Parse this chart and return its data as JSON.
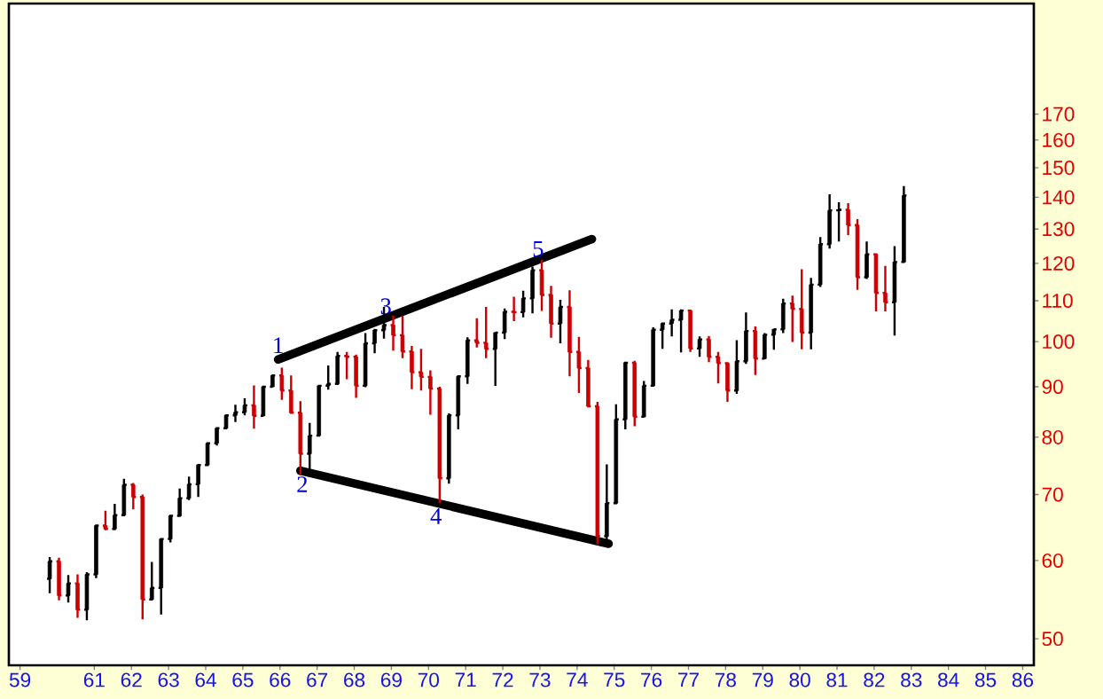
{
  "chart_data": {
    "type": "candlestick",
    "log": "y",
    "xlim": [
      58.7,
      86.3
    ],
    "ylim": [
      47,
      220
    ],
    "xticks": [
      59,
      61,
      62,
      63,
      64,
      65,
      66,
      67,
      68,
      69,
      70,
      71,
      72,
      73,
      74,
      75,
      76,
      77,
      78,
      79,
      80,
      81,
      82,
      83,
      84,
      85,
      86
    ],
    "yticks": [
      50,
      60,
      70,
      80,
      90,
      100,
      110,
      120,
      130,
      140,
      150,
      160,
      170
    ],
    "x": [
      59.8,
      60.05,
      60.3,
      60.55,
      60.8,
      61.05,
      61.3,
      61.55,
      61.8,
      62.05,
      62.3,
      62.55,
      62.8,
      63.05,
      63.3,
      63.55,
      63.8,
      64.05,
      64.3,
      64.55,
      64.8,
      65.05,
      65.3,
      65.55,
      65.8,
      66.05,
      66.3,
      66.55,
      66.8,
      67.05,
      67.3,
      67.55,
      67.8,
      68.05,
      68.3,
      68.55,
      68.8,
      69.05,
      69.3,
      69.55,
      69.8,
      70.05,
      70.3,
      70.55,
      70.8,
      71.05,
      71.3,
      71.55,
      71.8,
      72.05,
      72.3,
      72.55,
      72.8,
      73.05,
      73.3,
      73.55,
      73.8,
      74.05,
      74.3,
      74.55,
      74.8,
      75.05,
      75.3,
      75.55,
      75.8,
      76.05,
      76.3,
      76.55,
      76.8,
      77.05,
      77.3,
      77.55,
      77.8,
      78.05,
      78.3,
      78.55,
      78.8,
      79.05,
      79.3,
      79.55,
      79.8,
      80.05,
      80.3,
      80.55,
      80.8,
      81.05,
      81.3,
      81.55,
      81.8,
      82.05,
      82.3,
      82.55,
      82.8
    ],
    "ohlc": [
      [
        57.5,
        60.5,
        55.6,
        59.9
      ],
      [
        59.9,
        60.4,
        54.7,
        55.3
      ],
      [
        55.3,
        58.0,
        54.4,
        56.9
      ],
      [
        56.9,
        58.1,
        52.5,
        53.5
      ],
      [
        53.5,
        58.4,
        52.2,
        58.1
      ],
      [
        58.1,
        65.1,
        57.6,
        65.1
      ],
      [
        65.1,
        67.4,
        64.4,
        64.6
      ],
      [
        64.6,
        68.5,
        64.4,
        66.7
      ],
      [
        66.7,
        72.6,
        66.7,
        71.6
      ],
      [
        71.6,
        71.9,
        67.6,
        69.6
      ],
      [
        69.6,
        70.0,
        52.3,
        54.8
      ],
      [
        54.8,
        59.8,
        54.8,
        56.3
      ],
      [
        56.3,
        63.1,
        52.9,
        63.1
      ],
      [
        63.1,
        66.6,
        62.6,
        66.6
      ],
      [
        66.6,
        71.0,
        66.6,
        69.4
      ],
      [
        69.4,
        73.0,
        69.1,
        71.7
      ],
      [
        71.7,
        75.0,
        69.6,
        75.0
      ],
      [
        75.0,
        79.1,
        75.0,
        78.9
      ],
      [
        78.9,
        81.7,
        78.5,
        81.7
      ],
      [
        81.7,
        84.2,
        81.5,
        84.2
      ],
      [
        84.2,
        86.3,
        82.9,
        84.8
      ],
      [
        84.8,
        87.6,
        84.2,
        86.2
      ],
      [
        86.2,
        90.3,
        81.6,
        84.1
      ],
      [
        84.1,
        90.0,
        84.0,
        90.0
      ],
      [
        90.0,
        92.6,
        89.9,
        92.4
      ],
      [
        92.4,
        94.1,
        87.3,
        89.2
      ],
      [
        89.2,
        92.4,
        84.7,
        84.7
      ],
      [
        84.7,
        87.0,
        73.2,
        77.0
      ],
      [
        77.0,
        82.7,
        73.2,
        80.3
      ],
      [
        80.3,
        90.2,
        80.3,
        90.2
      ],
      [
        90.2,
        94.6,
        89.4,
        90.6
      ],
      [
        90.6,
        97.6,
        90.6,
        96.7
      ],
      [
        96.7,
        97.6,
        91.6,
        96.5
      ],
      [
        96.5,
        97.0,
        87.7,
        90.2
      ],
      [
        90.2,
        102.0,
        89.9,
        99.6
      ],
      [
        99.6,
        103.0,
        97.3,
        102.7
      ],
      [
        102.7,
        108.4,
        100.7,
        103.9
      ],
      [
        103.9,
        106.2,
        97.9,
        101.5
      ],
      [
        101.5,
        106.2,
        96.2,
        97.7
      ],
      [
        97.7,
        99.0,
        89.5,
        93.1
      ],
      [
        93.1,
        98.3,
        89.2,
        92.1
      ],
      [
        92.1,
        93.5,
        84.3,
        89.6
      ],
      [
        89.6,
        90.0,
        68.6,
        72.7
      ],
      [
        72.7,
        84.6,
        71.8,
        84.2
      ],
      [
        84.2,
        92.2,
        81.5,
        92.2
      ],
      [
        92.2,
        101.0,
        90.6,
        100.3
      ],
      [
        100.3,
        105.6,
        98.6,
        99.7
      ],
      [
        99.7,
        108.4,
        96.2,
        98.3
      ],
      [
        98.3,
        102.2,
        90.2,
        102.1
      ],
      [
        102.1,
        108.0,
        100.6,
        107.2
      ],
      [
        107.2,
        111.0,
        104.9,
        107.1
      ],
      [
        107.1,
        112.6,
        105.8,
        110.6
      ],
      [
        110.6,
        119.1,
        106.8,
        118.1
      ],
      [
        118.1,
        121.0,
        107.4,
        111.5
      ],
      [
        111.5,
        113.9,
        100.9,
        104.3
      ],
      [
        104.3,
        110.2,
        99.6,
        108.4
      ],
      [
        108.4,
        112.7,
        92.2,
        97.6
      ],
      [
        97.6,
        101.1,
        88.7,
        94.0
      ],
      [
        94.0,
        95.8,
        85.9,
        86.0
      ],
      [
        86.0,
        86.9,
        62.3,
        63.5
      ],
      [
        63.5,
        75.1,
        62.3,
        68.6
      ],
      [
        68.6,
        86.4,
        68.6,
        83.4
      ],
      [
        83.4,
        95.2,
        81.5,
        95.2
      ],
      [
        95.2,
        95.6,
        82.1,
        83.9
      ],
      [
        83.9,
        91.2,
        83.8,
        90.2
      ],
      [
        90.2,
        103.4,
        90.2,
        102.8
      ],
      [
        102.8,
        104.3,
        98.3,
        104.3
      ],
      [
        104.3,
        107.8,
        101.2,
        105.2
      ],
      [
        105.2,
        107.8,
        97.5,
        107.5
      ],
      [
        107.5,
        107.5,
        97.6,
        98.4
      ],
      [
        98.4,
        101.2,
        96.5,
        100.5
      ],
      [
        100.5,
        101.3,
        95.3,
        96.5
      ],
      [
        96.5,
        97.6,
        90.7,
        95.1
      ],
      [
        95.1,
        95.1,
        86.9,
        89.2
      ],
      [
        89.2,
        100.3,
        88.5,
        95.5
      ],
      [
        95.5,
        107.0,
        94.9,
        102.5
      ],
      [
        102.5,
        103.6,
        92.5,
        96.1
      ],
      [
        96.1,
        102.0,
        96.0,
        101.6
      ],
      [
        101.6,
        103.0,
        98.1,
        102.9
      ],
      [
        102.9,
        110.5,
        102.0,
        109.3
      ],
      [
        109.3,
        111.3,
        99.9,
        107.9
      ],
      [
        107.9,
        118.4,
        98.2,
        102.1
      ],
      [
        102.1,
        116.0,
        98.2,
        114.2
      ],
      [
        114.2,
        127.6,
        113.6,
        125.5
      ],
      [
        125.5,
        141.0,
        124.2,
        135.8
      ],
      [
        135.8,
        138.4,
        126.3,
        136.0
      ],
      [
        136.0,
        138.1,
        128.2,
        131.2
      ],
      [
        131.2,
        133.1,
        112.8,
        116.2
      ],
      [
        116.2,
        126.3,
        115.7,
        122.6
      ],
      [
        122.6,
        122.6,
        107.3,
        112.0
      ],
      [
        112.0,
        119.3,
        107.3,
        109.6
      ],
      [
        109.6,
        124.9,
        101.4,
        120.4
      ],
      [
        120.4,
        143.7,
        120.4,
        140.6
      ]
    ],
    "colors": [
      "#000000",
      "#cc0000",
      "#000000",
      "#cc0000",
      "#000000",
      "#000000",
      "#cc0000",
      "#000000",
      "#000000",
      "#cc0000",
      "#cc0000",
      "#000000",
      "#000000",
      "#000000",
      "#000000",
      "#000000",
      "#000000",
      "#000000",
      "#000000",
      "#000000",
      "#000000",
      "#000000",
      "#cc0000",
      "#000000",
      "#000000",
      "#cc0000",
      "#cc0000",
      "#cc0000",
      "#000000",
      "#000000",
      "#000000",
      "#000000",
      "#cc0000",
      "#cc0000",
      "#000000",
      "#000000",
      "#000000",
      "#cc0000",
      "#cc0000",
      "#cc0000",
      "#cc0000",
      "#cc0000",
      "#cc0000",
      "#000000",
      "#000000",
      "#000000",
      "#cc0000",
      "#cc0000",
      "#000000",
      "#000000",
      "#cc0000",
      "#000000",
      "#000000",
      "#cc0000",
      "#cc0000",
      "#000000",
      "#cc0000",
      "#cc0000",
      "#cc0000",
      "#cc0000",
      "#000000",
      "#000000",
      "#000000",
      "#cc0000",
      "#000000",
      "#000000",
      "#000000",
      "#000000",
      "#000000",
      "#cc0000",
      "#000000",
      "#cc0000",
      "#cc0000",
      "#cc0000",
      "#000000",
      "#000000",
      "#cc0000",
      "#000000",
      "#000000",
      "#000000",
      "#cc0000",
      "#cc0000",
      "#000000",
      "#000000",
      "#000000",
      "#000000",
      "#cc0000",
      "#cc0000",
      "#000000",
      "#cc0000",
      "#cc0000",
      "#000000",
      "#000000"
    ],
    "series": [
      {
        "type": "line",
        "color": "#000000",
        "x": [
          65.95,
          74.4
        ],
        "values": [
          95.9,
          127
        ]
      },
      {
        "type": "line",
        "color": "#000000",
        "x": [
          66.55,
          74.85
        ],
        "values": [
          74.0,
          62.4
        ]
      }
    ],
    "annotations": [
      {
        "text": "1",
        "x": 65.95,
        "y": 95.9
      },
      {
        "text": "2",
        "x": 66.6,
        "y": 73.9
      },
      {
        "text": "3",
        "x": 68.85,
        "y": 105
      },
      {
        "text": "4",
        "x": 70.2,
        "y": 68.6
      },
      {
        "text": "5",
        "x": 72.95,
        "y": 120
      }
    ]
  }
}
